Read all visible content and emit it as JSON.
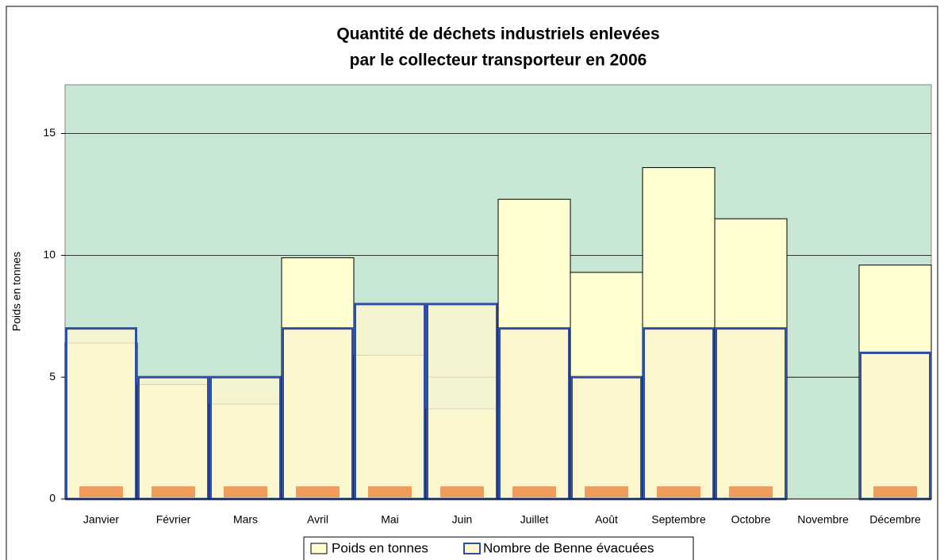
{
  "chart_data": {
    "type": "bar",
    "title": [
      "Quantité de déchets industriels  enlevées",
      "par le collecteur transporteur en 2006"
    ],
    "y_label": "Poids en tonnes",
    "categories": [
      "Janvier",
      "Février",
      "Mars",
      "Avril",
      "Mai",
      "Juin",
      "Juillet",
      "Août",
      "Septembre",
      "Octobre",
      "Novembre",
      "Décembre"
    ],
    "series": [
      {
        "name": "Poids en tonnes",
        "color": "#ffffd2",
        "values": [
          6.4,
          4.7,
          3.9,
          9.9,
          5.9,
          3.7,
          12.3,
          9.3,
          13.6,
          11.5,
          null,
          9.6
        ]
      },
      {
        "name": "Nombre de Benne évacuées",
        "color": "#2e4fa3",
        "values": [
          7,
          5,
          5,
          7,
          8,
          8,
          7,
          5,
          7,
          7,
          null,
          6
        ]
      }
    ],
    "ylim": [
      0,
      17
    ],
    "yticks": [
      0,
      5,
      10,
      15
    ],
    "grid": true,
    "plot_background": "#c8e6d4"
  }
}
